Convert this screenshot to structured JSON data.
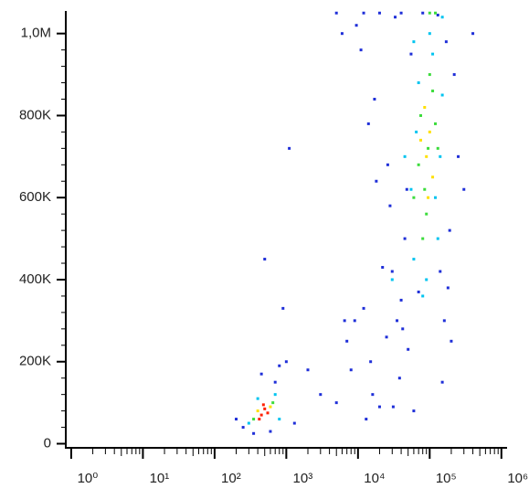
{
  "chart_data": {
    "type": "scatter",
    "xscale": "log",
    "xlim": [
      0.84,
      1200000
    ],
    "xticks": [
      {
        "value": 1,
        "label": "10⁰"
      },
      {
        "value": 10,
        "label": "10¹"
      },
      {
        "value": 100,
        "label": "10²"
      },
      {
        "value": 1000,
        "label": "10³"
      },
      {
        "value": 10000,
        "label": "10⁴"
      },
      {
        "value": 100000,
        "label": "10⁵"
      },
      {
        "value": 1000000,
        "label": "10⁶"
      }
    ],
    "ylim": [
      -10000,
      1055000
    ],
    "yticks": [
      0,
      {
        "value": 200000,
        "label": "200K"
      },
      {
        "value": 400000,
        "label": "400K"
      },
      {
        "value": 600000,
        "label": "600K"
      },
      {
        "value": 800000,
        "label": "800K"
      },
      {
        "value": 1000000,
        "label": "1,0M"
      }
    ],
    "series": [
      {
        "color": "#1f2fd8",
        "x": [
          200,
          250,
          700,
          1000,
          900,
          1100,
          500,
          2000,
          3000,
          5000,
          7000,
          9000,
          12000,
          15000,
          20000,
          25000,
          8000,
          6000,
          11000,
          18000,
          30000,
          40000,
          14000,
          22000,
          35000,
          60000,
          150000,
          200000,
          250000,
          180000,
          45000,
          55000,
          28000,
          17000,
          13000,
          9500,
          16000,
          26000,
          33000,
          50000,
          70000,
          140000,
          170000,
          190000,
          160000,
          220000,
          130000,
          48000,
          42000,
          38000,
          31000,
          600,
          450,
          350,
          800,
          1300,
          6500,
          12000,
          300000,
          400000,
          5000,
          80000,
          20000,
          40000
        ],
        "values": [
          60000,
          40000,
          150000,
          200000,
          330000,
          720000,
          450000,
          180000,
          120000,
          100000,
          250000,
          300000,
          330000,
          200000,
          90000,
          260000,
          180000,
          1000000,
          960000,
          640000,
          420000,
          350000,
          780000,
          430000,
          300000,
          80000,
          150000,
          250000,
          700000,
          380000,
          500000,
          950000,
          580000,
          840000,
          60000,
          1020000,
          120000,
          680000,
          1040000,
          230000,
          370000,
          420000,
          980000,
          520000,
          300000,
          900000,
          1045000,
          620000,
          280000,
          160000,
          90000,
          30000,
          170000,
          25000,
          190000,
          50000,
          300000,
          1050000,
          620000,
          1000000,
          1050000,
          1050000,
          1050000,
          1050000
        ]
      },
      {
        "color": "#00c4f0",
        "x": [
          300,
          700,
          800,
          400,
          60000,
          70000,
          90000,
          110000,
          130000,
          55000,
          65000,
          140000,
          45000,
          100000,
          150000,
          80000,
          120000,
          60000,
          150000,
          30000
        ],
        "values": [
          50000,
          120000,
          60000,
          110000,
          450000,
          880000,
          400000,
          950000,
          500000,
          620000,
          760000,
          700000,
          700000,
          1000000,
          850000,
          360000,
          600000,
          980000,
          1040000,
          400000
        ]
      },
      {
        "color": "#3cdc3c",
        "x": [
          350,
          650,
          75000,
          85000,
          95000,
          110000,
          70000,
          120000,
          90000,
          100000,
          60000,
          130000,
          100000,
          120000,
          80000
        ],
        "values": [
          60000,
          100000,
          800000,
          620000,
          720000,
          860000,
          680000,
          780000,
          560000,
          900000,
          600000,
          720000,
          1050000,
          1050000,
          500000
        ]
      },
      {
        "color": "#ffe000",
        "x": [
          400,
          600,
          90000,
          100000,
          85000,
          110000,
          95000,
          75000
        ],
        "values": [
          80000,
          90000,
          700000,
          760000,
          820000,
          650000,
          600000,
          740000
        ]
      },
      {
        "color": "#ff2000",
        "x": [
          450,
          500,
          550,
          480,
          420
        ],
        "values": [
          70000,
          85000,
          75000,
          95000,
          60000
        ]
      }
    ]
  }
}
